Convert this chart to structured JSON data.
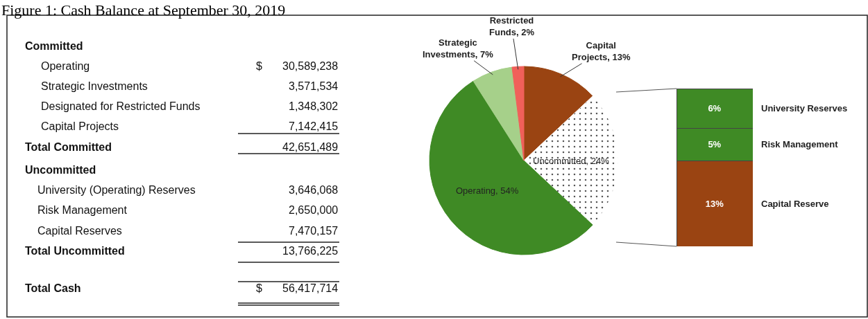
{
  "chart_data": [
    {
      "type": "other",
      "title": "Figure 1: Cash Balance at September 30, 2019",
      "annotations": [
        "Committed",
        "Operating",
        "$",
        "30,589,238",
        "Strategic Investments",
        "3,571,534",
        "Designated for Restricted Funds",
        "1,348,302",
        "Capital Projects",
        "7,142,415",
        "Total Committed",
        "42,651,489",
        "Uncommitted",
        "University (Operating) Reserves",
        "3,646,068",
        "Risk Management",
        "2,650,000",
        "Capital Reserves",
        "7,470,157",
        "Total Uncommitted",
        "13,766,225",
        "Total Cash",
        "$",
        "56,417,714"
      ]
    },
    {
      "type": "pie",
      "categories": [
        "Capital Projects",
        "Uncommitted",
        "Operating",
        "Strategic Investments",
        "Restricted Funds"
      ],
      "values": [
        13,
        24,
        54,
        7,
        2
      ],
      "value_labels": [
        "13%",
        "24%",
        "54%",
        "7%",
        "2%"
      ],
      "colors": [
        "#9a4412",
        "#ffffff",
        "#3f8a25",
        "#a6d08a",
        "#f0605a"
      ]
    },
    {
      "type": "bar",
      "stacked": true,
      "categories": [
        null
      ],
      "tick_labels": false,
      "series": [
        {
          "name": "Capital Reserve",
          "color": "#9a4412",
          "values": [
            13
          ],
          "value_labels": [
            "13%"
          ]
        },
        {
          "name": "Risk Management",
          "color": "#3f8a25",
          "values": [
            5
          ],
          "value_labels": [
            "5%"
          ]
        },
        {
          "name": "University Reserves",
          "color": "#3f8a25",
          "values": [
            6
          ],
          "value_labels": [
            "6%"
          ]
        }
      ]
    }
  ]
}
